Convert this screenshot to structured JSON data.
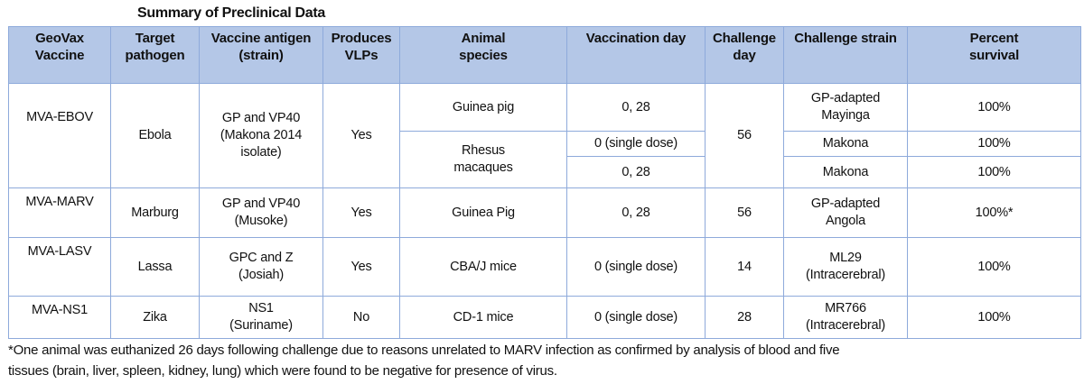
{
  "title": "Summary of Preclinical Data",
  "headers": [
    "GeoVax Vaccine",
    "Target pathogen",
    "Vaccine antigen (strain)",
    "Produces VLPs",
    "Animal species",
    "Vaccination day",
    "Challenge day",
    "Challenge strain",
    "Percent survival"
  ],
  "headers_lines": [
    [
      "GeoVax",
      "Vaccine"
    ],
    [
      "Target",
      "pathogen"
    ],
    [
      "Vaccine antigen",
      "(strain)"
    ],
    [
      "Produces",
      "VLPs"
    ],
    [
      "Animal",
      "species"
    ],
    [
      "Vaccination day",
      ""
    ],
    [
      "Challenge",
      "day"
    ],
    [
      "Challenge strain",
      ""
    ],
    [
      "Percent",
      "survival"
    ]
  ],
  "rows": {
    "ebov": {
      "vaccine": "MVA-EBOV",
      "pathogen": "Ebola",
      "antigen": [
        "GP and VP40",
        "(Makona 2014",
        "isolate)"
      ],
      "vlps": "Yes",
      "challenge_day": "56",
      "sub": [
        {
          "species": "Guinea pig",
          "vacc_day": "0, 28",
          "strain": [
            "GP-adapted",
            "Mayinga"
          ],
          "survival": "100%"
        },
        {
          "species": [
            "Rhesus",
            "macaques"
          ],
          "vacc_day": "0 (single dose)",
          "strain": "Makona",
          "survival": "100%"
        },
        {
          "vacc_day": "0, 28",
          "strain": "Makona",
          "survival": "100%"
        }
      ]
    },
    "marv": {
      "vaccine": "MVA-MARV",
      "pathogen": "Marburg",
      "antigen": [
        "GP and VP40",
        "(Musoke)"
      ],
      "vlps": "Yes",
      "species": "Guinea Pig",
      "vacc_day": "0, 28",
      "challenge_day": "56",
      "strain": [
        "GP-adapted",
        "Angola"
      ],
      "survival": "100%*"
    },
    "lasv": {
      "vaccine": "MVA-LASV",
      "pathogen": "Lassa",
      "antigen": [
        "GPC and Z",
        "(Josiah)"
      ],
      "vlps": "Yes",
      "species": "CBA/J mice",
      "vacc_day": "0 (single dose)",
      "challenge_day": "14",
      "strain": [
        "ML29",
        "(Intracerebral)"
      ],
      "survival": "100%"
    },
    "ns1": {
      "vaccine": "MVA-NS1",
      "pathogen": "Zika",
      "antigen": [
        "NS1",
        "(Suriname)"
      ],
      "vlps": "No",
      "species": "CD-1 mice",
      "vacc_day": "0 (single dose)",
      "challenge_day": "28",
      "strain": [
        "MR766",
        "(Intracerebral)"
      ],
      "survival": "100%"
    }
  },
  "footnote": [
    "*One animal was euthanized 26 days following challenge due to reasons unrelated to MARV infection as confirmed by analysis of blood and five",
    "tissues (brain, liver, spleen, kidney, lung) which were found to be negative for presence of virus."
  ]
}
